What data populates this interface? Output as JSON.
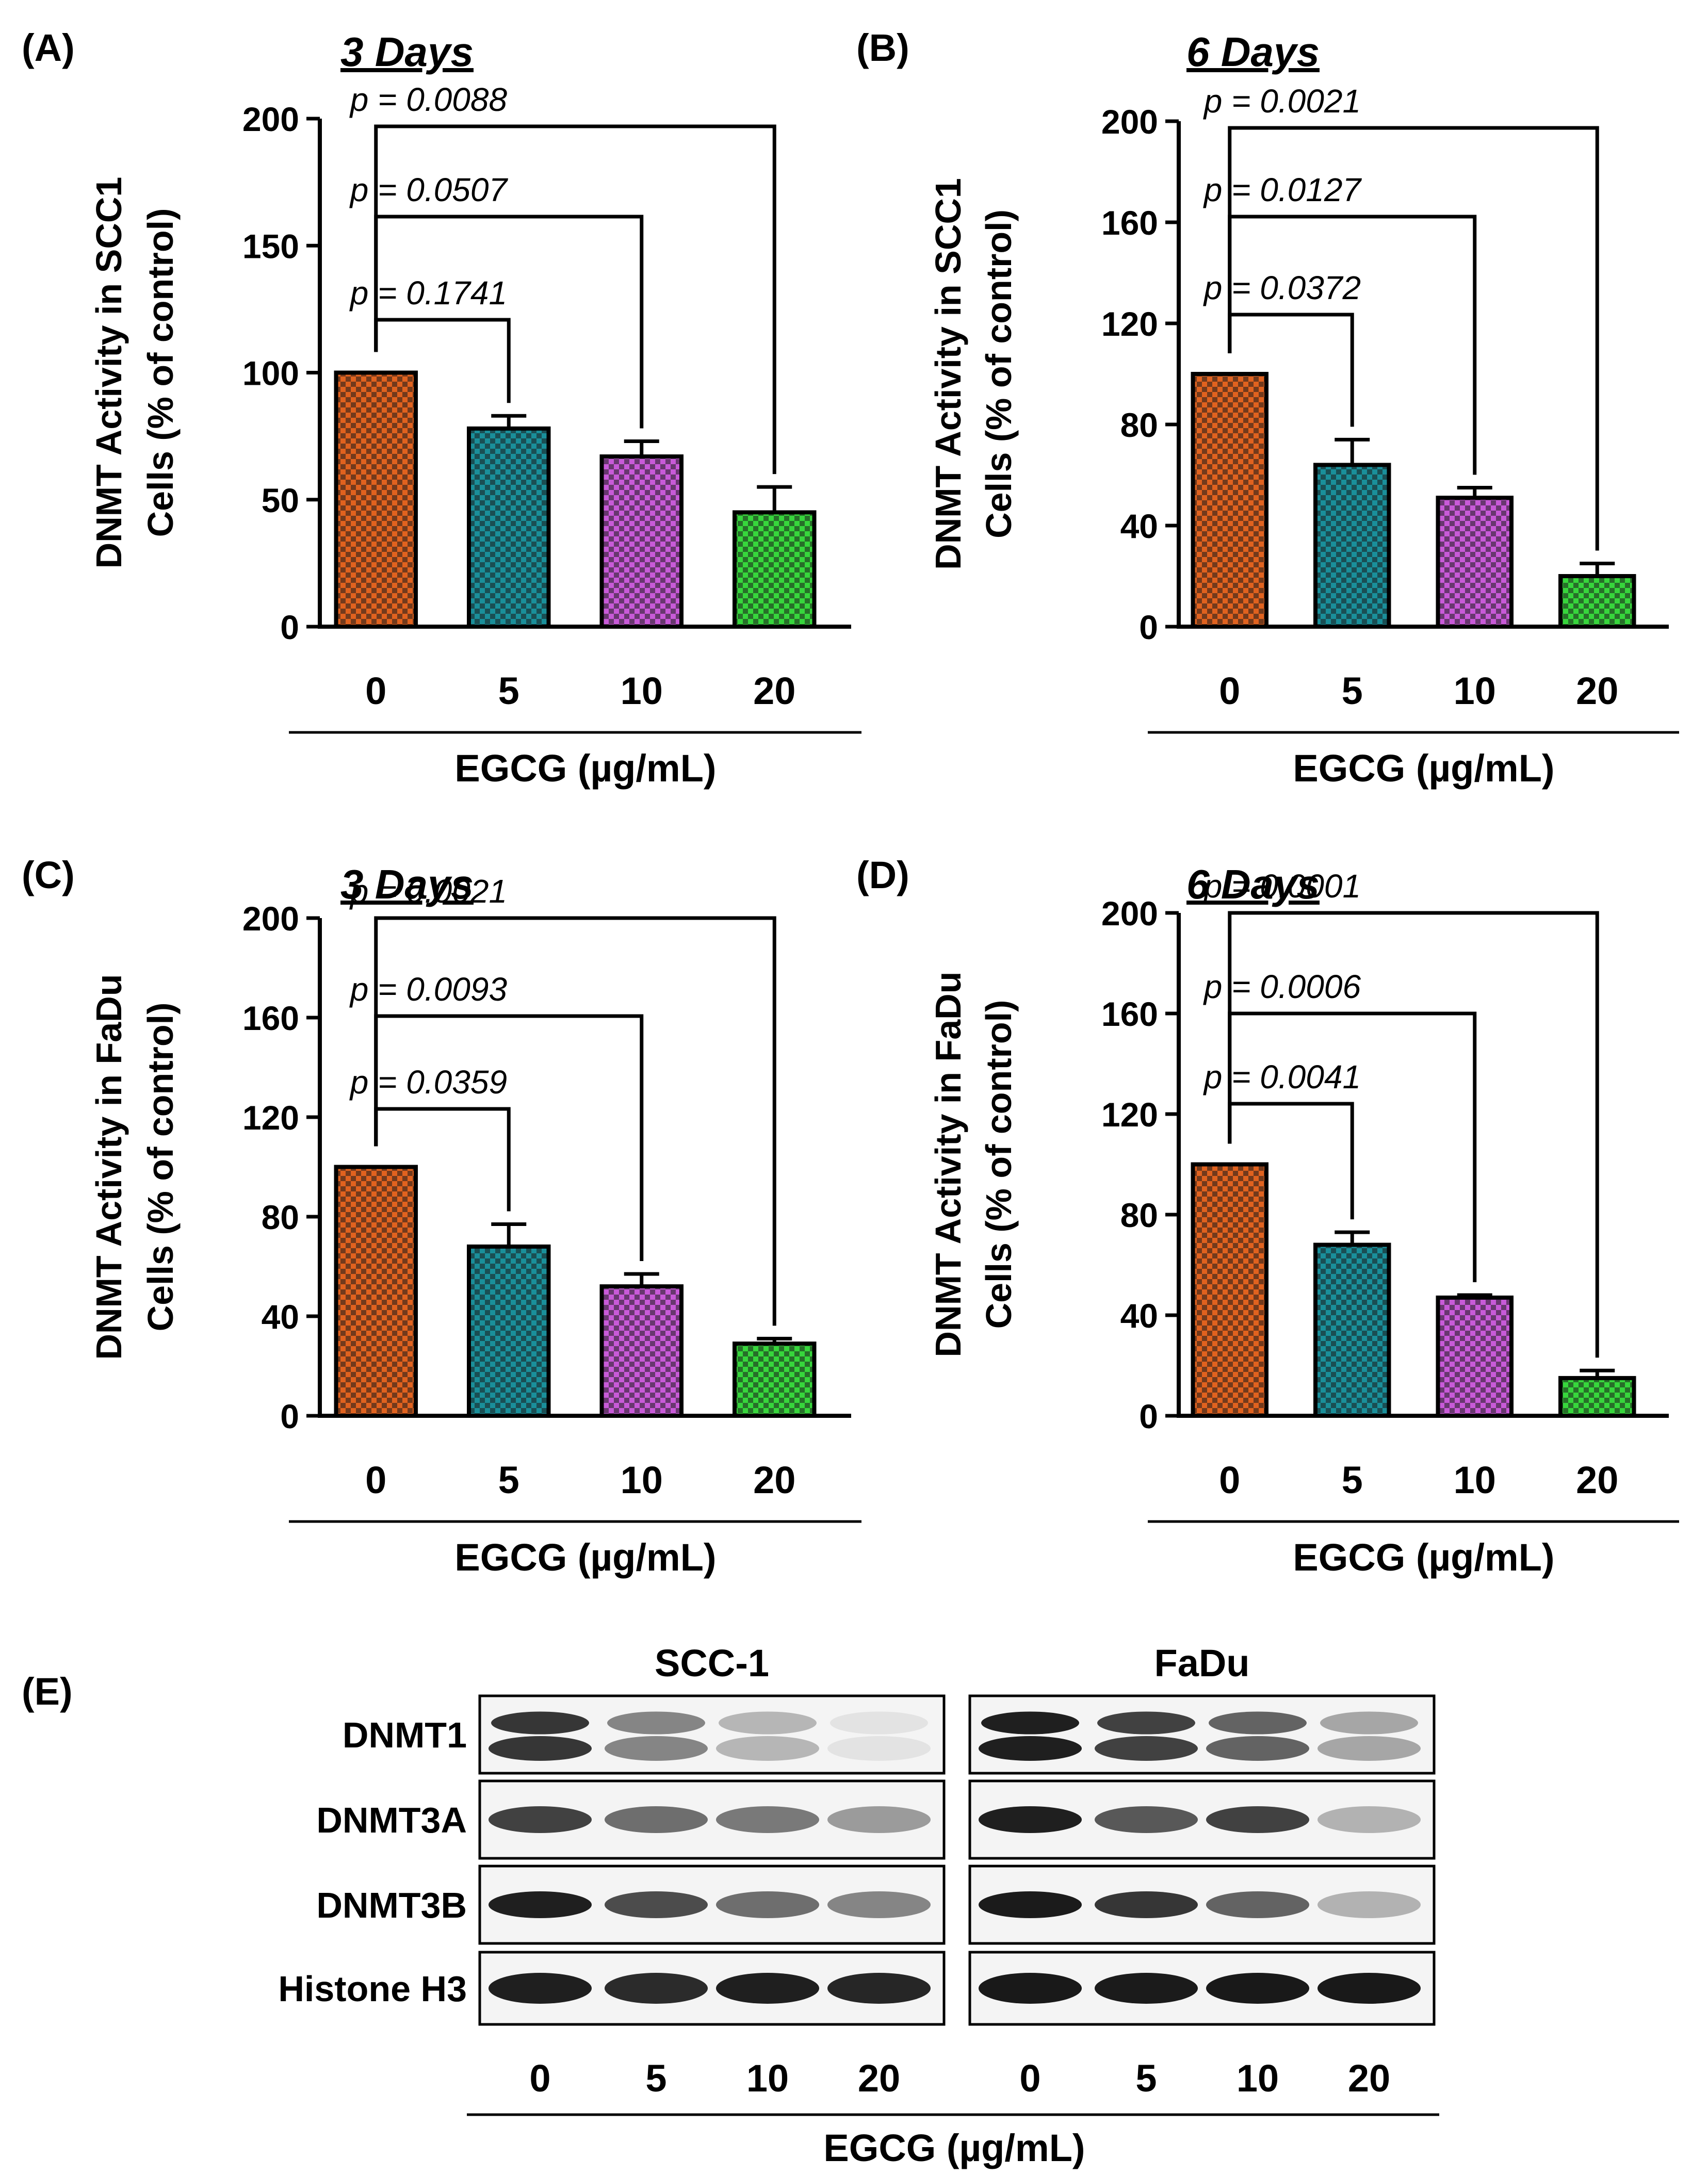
{
  "figure": {
    "panels": [
      "(A)",
      "(B)",
      "(C)",
      "(D)",
      "(E)"
    ],
    "colors": {
      "bar_0": "#e0621f",
      "bar_5": "#1a8f9a",
      "bar_10": "#c85ad8",
      "bar_20": "#37d63c",
      "checker_dark": "#1a1a1a"
    }
  },
  "chart_data": [
    {
      "panel": "(A)",
      "type": "bar",
      "title": "3 Days",
      "ylabel_line1": "DNMT Activity in SCC1",
      "ylabel_line2": "Cells (% of control)",
      "xlabel": "EGCG (µg/mL)",
      "categories": [
        "0",
        "5",
        "10",
        "20"
      ],
      "values": [
        100,
        78,
        67,
        45
      ],
      "errors": [
        0,
        5,
        6,
        10
      ],
      "ylim": [
        0,
        200
      ],
      "yticks": [
        "0",
        "50",
        "100",
        "150",
        "200"
      ],
      "pvalues": [
        "p = 0.1741",
        "p = 0.0507",
        "p = 0.0088"
      ]
    },
    {
      "panel": "(B)",
      "type": "bar",
      "title": "6 Days",
      "ylabel_line1": "DNMT Activity in SCC1",
      "ylabel_line2": "Cells (% of control)",
      "xlabel": "EGCG (µg/mL)",
      "categories": [
        "0",
        "5",
        "10",
        "20"
      ],
      "values": [
        100,
        64,
        51,
        20
      ],
      "errors": [
        0,
        10,
        4,
        5
      ],
      "ylim": [
        0,
        200
      ],
      "yticks": [
        "0",
        "40",
        "80",
        "120",
        "160",
        "200"
      ],
      "pvalues": [
        "p = 0.0372",
        "p = 0.0127",
        "p = 0.0021"
      ]
    },
    {
      "panel": "(C)",
      "type": "bar",
      "title": "3 Days",
      "ylabel_line1": "DNMT Activity in FaDu",
      "ylabel_line2": "Cells (% of control)",
      "xlabel": "EGCG (µg/mL)",
      "categories": [
        "0",
        "5",
        "10",
        "20"
      ],
      "values": [
        100,
        68,
        52,
        29
      ],
      "errors": [
        0,
        9,
        5,
        2
      ],
      "ylim": [
        0,
        200
      ],
      "yticks": [
        "0",
        "40",
        "80",
        "120",
        "160",
        "200"
      ],
      "pvalues": [
        "p = 0.0359",
        "p = 0.0093",
        "p = 0.0021"
      ]
    },
    {
      "panel": "(D)",
      "type": "bar",
      "title": "6 Days",
      "ylabel_line1": "DNMT Activity in FaDu",
      "ylabel_line2": "Cells (% of control)",
      "xlabel": "EGCG (µg/mL)",
      "categories": [
        "0",
        "5",
        "10",
        "20"
      ],
      "values": [
        100,
        68,
        47,
        15
      ],
      "errors": [
        0,
        5,
        1,
        3
      ],
      "ylim": [
        0,
        200
      ],
      "yticks": [
        "0",
        "40",
        "80",
        "120",
        "160",
        "200"
      ],
      "pvalues": [
        "p = 0.0041",
        "p = 0.0006",
        "p = 0.0001"
      ]
    }
  ],
  "blot": {
    "panel": "(E)",
    "groups": [
      "SCC-1",
      "FaDu"
    ],
    "rows": [
      "DNMT1",
      "DNMT3A",
      "DNMT3B",
      "Histone H3"
    ],
    "lanes": [
      "0",
      "5",
      "10",
      "20"
    ],
    "xlabel": "EGCG (µg/mL)",
    "intensity": {
      "SCC-1": [
        [
          0.85,
          0.5,
          0.28,
          0.08
        ],
        [
          0.8,
          0.6,
          0.55,
          0.4
        ],
        [
          0.95,
          0.75,
          0.6,
          0.5
        ],
        [
          0.95,
          0.9,
          0.95,
          0.92
        ]
      ],
      "FaDu": [
        [
          0.95,
          0.8,
          0.65,
          0.35
        ],
        [
          0.95,
          0.7,
          0.8,
          0.3
        ],
        [
          0.97,
          0.85,
          0.65,
          0.3
        ],
        [
          0.98,
          0.97,
          0.98,
          0.98
        ]
      ]
    }
  }
}
